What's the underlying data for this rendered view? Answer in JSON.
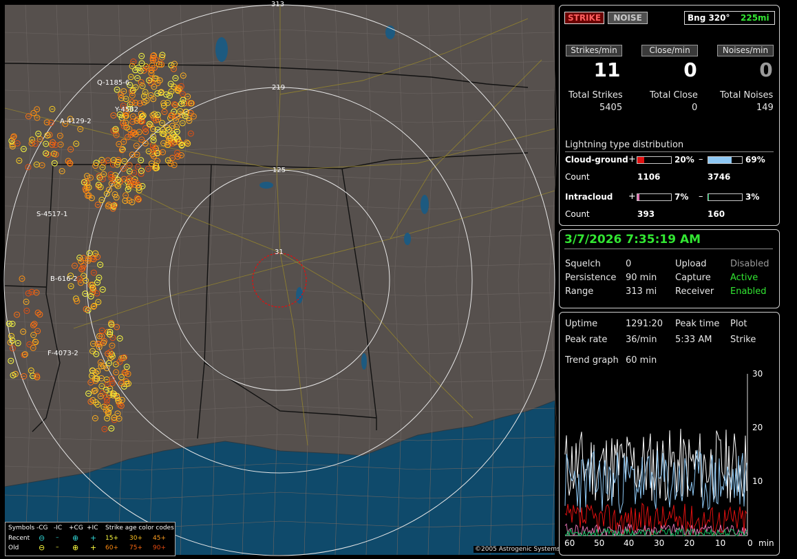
{
  "header": {
    "strike_label": "STRIKE",
    "noise_label": "NOISE",
    "bearing": "Bng 320°",
    "bearing_distance": "225mi"
  },
  "rates": {
    "strikes_label": "Strikes/min",
    "close_label": "Close/min",
    "noises_label": "Noises/min",
    "strikes_value": "11",
    "close_value": "0",
    "noises_value": "0"
  },
  "totals": {
    "strikes_label": "Total Strikes",
    "close_label": "Total Close",
    "noises_label": "Total Noises",
    "strikes_value": "5405",
    "close_value": "0",
    "noises_value": "149"
  },
  "distribution": {
    "title": "Lightning type distribution",
    "cg_label": "Cloud-ground",
    "ic_label": "Intracloud",
    "count_label": "Count",
    "plus": "+",
    "minus": "–",
    "cg_pos_pct": "20%",
    "cg_neg_pct": "69%",
    "ic_pos_pct": "7%",
    "ic_neg_pct": "3%",
    "cg_pos_frac": 0.2,
    "cg_neg_frac": 0.69,
    "ic_pos_frac": 0.07,
    "ic_neg_frac": 0.03,
    "cg_pos_count": "1106",
    "cg_neg_count": "3746",
    "ic_pos_count": "393",
    "ic_neg_count": "160",
    "colors": {
      "cg_pos": "#e01010",
      "cg_neg": "#8ec8f4",
      "ic_pos": "#e070b0",
      "ic_neg": "#10c060"
    }
  },
  "status": {
    "datetime": "3/7/2026 7:35:19 AM",
    "squelch_label": "Squelch",
    "squelch_value": "0",
    "upload_label": "Upload",
    "upload_value": "Disabled",
    "persistence_label": "Persistence",
    "persistence_value": "90 min",
    "capture_label": "Capture",
    "capture_value": "Active",
    "range_label": "Range",
    "range_value": "313 mi",
    "receiver_label": "Receiver",
    "receiver_value": "Enabled"
  },
  "stats": {
    "uptime_label": "Uptime",
    "uptime_value": "1291:20",
    "peak_time_label": "Peak time",
    "plot_label": "Plot",
    "peak_rate_label": "Peak rate",
    "peak_rate_value": "36/min",
    "peak_time_value": "5:33 AM",
    "plot_value": "Strike",
    "trend_label": "Trend graph",
    "trend_value": "60 min"
  },
  "trend_graph": {
    "y_ticks": [
      "30",
      "20",
      "10"
    ],
    "x_ticks": [
      "60",
      "50",
      "40",
      "30",
      "20",
      "10",
      "0"
    ],
    "x_unit": "min"
  },
  "map": {
    "range_labels": [
      "313",
      "219",
      "125",
      "31"
    ],
    "storm_labels": [
      "Q-1185-6",
      "Y-4582",
      "A-4129-2",
      "S-4517-1",
      "B-616-2",
      "F-4073-2"
    ],
    "copyright": "©2005 Astrogenic Systems",
    "legend": {
      "symbols_label": "Symbols",
      "col_neg_cg": "-CG",
      "col_neg_ic": "-IC",
      "col_pos_cg": "+CG",
      "col_pos_ic": "+IC",
      "age_label": "Strike age color codes",
      "recent_label": "Recent",
      "old_label": "Old",
      "recent_ages": [
        "15+",
        "30+",
        "45+"
      ],
      "old_ages": [
        "60+",
        "75+",
        "90+"
      ]
    }
  }
}
